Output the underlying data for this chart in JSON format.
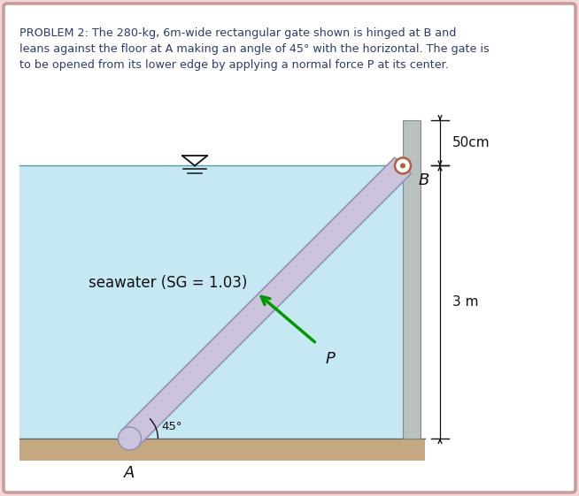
{
  "title_text": "PROBLEM 2: The 280-kg, 6m-wide rectangular gate shown is hinged at B and\nleans against the floor at A making an angle of 45° with the horizontal. The gate is\nto be opened from its lower edge by applying a normal force P at its center.",
  "title_color": "#2e3a6e",
  "bg_color": "#f0d8d8",
  "outer_border_color": "#cc9999",
  "water_color": "#c5e8f2",
  "floor_color": "#c4a882",
  "wall_color": "#b8c0c0",
  "gate_color": "#ccc4dc",
  "gate_edge_color": "#9090b8",
  "hinge_color": "#b06040",
  "arrow_P_color": "#009900",
  "dim_color": "#111111",
  "text_color": "#111111",
  "seawater_label": "seawater (SG = 1.03)",
  "label_50cm": "50cm",
  "label_3m": "3 m",
  "label_45deg": "45°",
  "label_A": "A",
  "label_B": "B",
  "label_P": "P"
}
